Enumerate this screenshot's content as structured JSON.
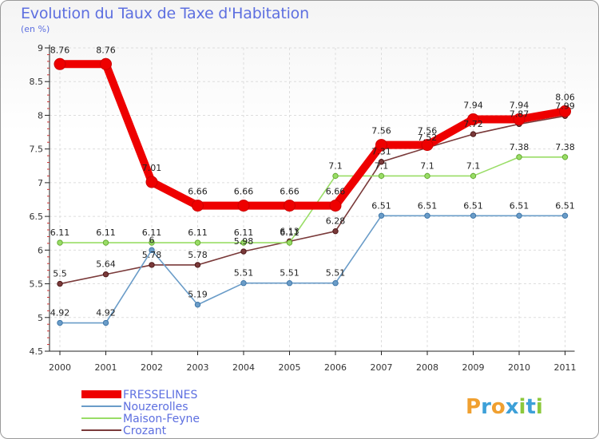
{
  "chart_data": {
    "type": "line",
    "title": "Evolution du Taux de Taxe d'Habitation",
    "ylabel": "(en %)",
    "xlabel": "",
    "categories": [
      "2000",
      "2001",
      "2002",
      "2003",
      "2004",
      "2005",
      "2006",
      "2007",
      "2008",
      "2009",
      "2010",
      "2011"
    ],
    "ylim": [
      4.5,
      9
    ],
    "yticks": [
      "4.5",
      "5",
      "5.5",
      "6",
      "6.5",
      "7",
      "7.5",
      "8",
      "8.5",
      "9"
    ],
    "series": [
      {
        "name": "FRESSELINES",
        "color": "#ee0000",
        "values": [
          8.76,
          8.76,
          7.01,
          6.66,
          6.66,
          6.66,
          6.66,
          7.56,
          7.56,
          7.94,
          7.94,
          8.06
        ],
        "labels": [
          "8.76",
          "8.76",
          "7.01",
          "6.66",
          "6.66",
          "6.66",
          "6.66",
          "7.56",
          "7.56",
          "7.94",
          "7.94",
          "8.06"
        ]
      },
      {
        "name": "Nouzerolles",
        "color": "#6a9cc8",
        "values": [
          4.92,
          4.92,
          6,
          5.19,
          5.51,
          5.51,
          5.51,
          6.51,
          6.51,
          6.51,
          6.51,
          6.51
        ],
        "labels": [
          "4.92",
          "4.92",
          "6",
          "5.19",
          "5.51",
          "5.51",
          "5.51",
          "6.51",
          "6.51",
          "6.51",
          "6.51",
          "6.51"
        ]
      },
      {
        "name": "Maison-Feyne",
        "color": "#99dd66",
        "values": [
          6.11,
          6.11,
          6.11,
          6.11,
          6.11,
          6.11,
          7.1,
          7.1,
          7.1,
          7.1,
          7.38,
          7.38
        ],
        "labels": [
          "6.11",
          "6.11",
          "6.11",
          "6.11",
          "6.11",
          "6.11",
          "7.1",
          "7.1",
          "7.1",
          "7.1",
          "7.38",
          "7.38"
        ]
      },
      {
        "name": "Crozant",
        "color": "#7a3a3a",
        "values": [
          5.5,
          5.64,
          5.78,
          5.78,
          5.98,
          6.13,
          6.28,
          7.31,
          7.52,
          7.72,
          7.87,
          7.99
        ],
        "labels": [
          "5.5",
          "5.64",
          "5.78",
          "5.78",
          "5.98",
          "6.13",
          "6.28",
          "7.31",
          "7.52",
          "7.72",
          "7.87",
          "7.99"
        ]
      }
    ],
    "legend_position": "bottom-left"
  },
  "brand": {
    "letters": [
      "P",
      "r",
      "o",
      "x",
      "i",
      "t",
      "i"
    ],
    "colors": [
      "#f0a030",
      "#3da0d8",
      "#f0a030",
      "#3da0d8",
      "#8cc83c",
      "#3da0d8",
      "#8cc83c"
    ]
  }
}
